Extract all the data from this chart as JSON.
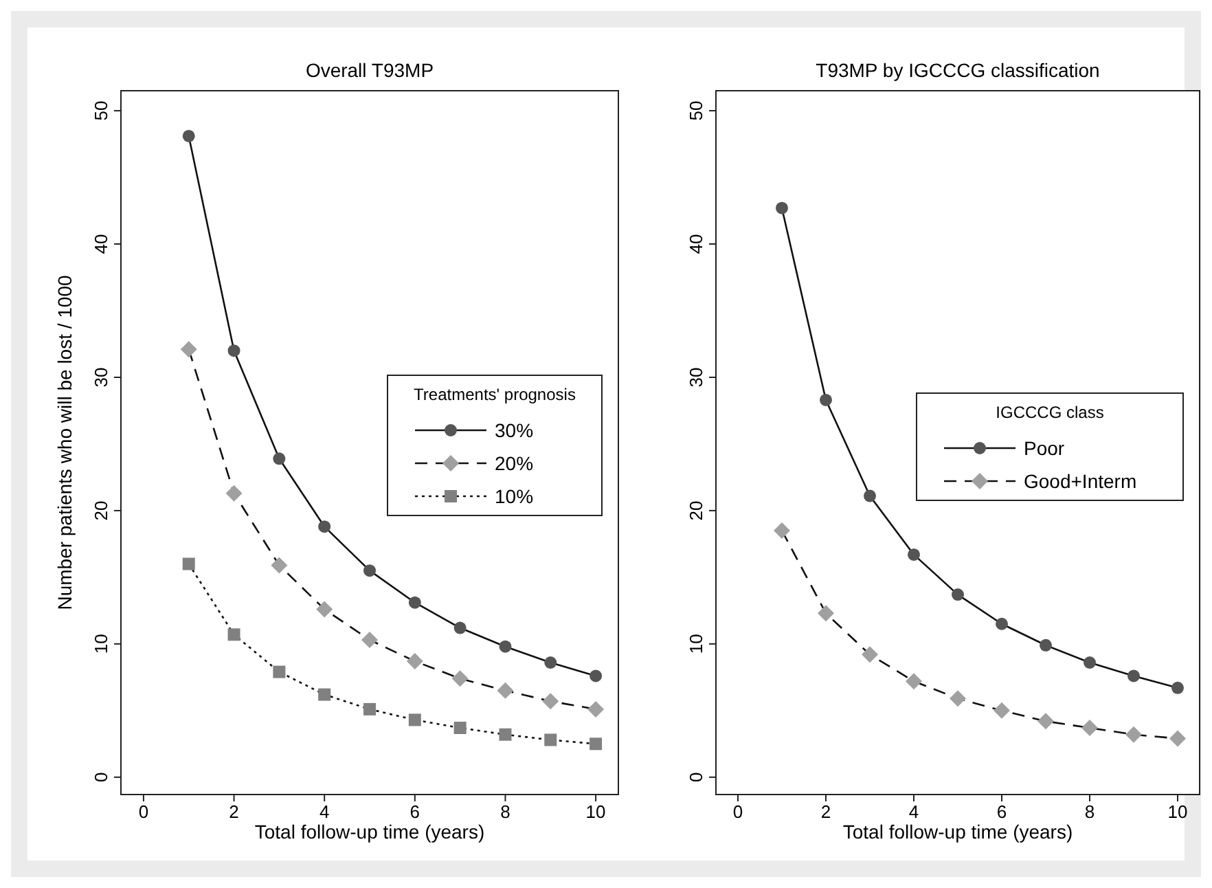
{
  "chart_data": [
    {
      "type": "line",
      "title": "Overall T93MP",
      "xlabel": "Total follow-up time (years)",
      "ylabel": "Number patients who will be lost / 1000",
      "legend_title": "Treatments' prognosis",
      "legend": "right",
      "x": [
        1,
        2,
        3,
        4,
        5,
        6,
        7,
        8,
        9,
        10
      ],
      "xlim": [
        -0.5,
        10.5
      ],
      "xticks": [
        0,
        2,
        4,
        6,
        8,
        10
      ],
      "ylim": [
        -1.3,
        51.5
      ],
      "yticks": [
        0,
        10,
        20,
        30,
        40,
        50
      ],
      "grid": false,
      "series": [
        {
          "name": "30%",
          "color": "#555555",
          "marker": "circle",
          "line_style": "solid",
          "values": [
            48.1,
            32,
            23.9,
            18.8,
            15.5,
            13.1,
            11.2,
            9.8,
            8.6,
            7.6
          ]
        },
        {
          "name": "20%",
          "color": "#a0a0a0",
          "marker": "diamond",
          "line_style": "dashed",
          "values": [
            32.1,
            21.3,
            15.9,
            12.6,
            10.3,
            8.7,
            7.4,
            6.5,
            5.7,
            5.1
          ]
        },
        {
          "name": "10%",
          "color": "#808080",
          "marker": "square",
          "line_style": "dotted",
          "values": [
            16,
            10.7,
            7.9,
            6.2,
            5.1,
            4.3,
            3.7,
            3.2,
            2.8,
            2.5
          ]
        }
      ]
    },
    {
      "type": "line",
      "title": "T93MP by IGCCCG classification",
      "xlabel": "Total follow-up time (years)",
      "legend_title": "IGCCCG class",
      "legend": "right",
      "x": [
        1,
        2,
        3,
        4,
        5,
        6,
        7,
        8,
        9,
        10
      ],
      "xlim": [
        -0.5,
        10.5
      ],
      "xticks": [
        0,
        2,
        4,
        6,
        8,
        10
      ],
      "ylim": [
        -1.3,
        51.5
      ],
      "yticks": [
        0,
        10,
        20,
        30,
        40,
        50
      ],
      "grid": false,
      "series": [
        {
          "name": "Poor",
          "color": "#555555",
          "marker": "circle",
          "line_style": "solid",
          "values": [
            42.7,
            28.3,
            21.1,
            16.7,
            13.7,
            11.5,
            9.9,
            8.6,
            7.6,
            6.7
          ]
        },
        {
          "name": "Good+Interm",
          "color": "#a0a0a0",
          "marker": "diamond",
          "line_style": "dashed",
          "values": [
            18.5,
            12.3,
            9.2,
            7.2,
            5.9,
            5.0,
            4.2,
            3.7,
            3.2,
            2.9
          ]
        }
      ]
    }
  ]
}
